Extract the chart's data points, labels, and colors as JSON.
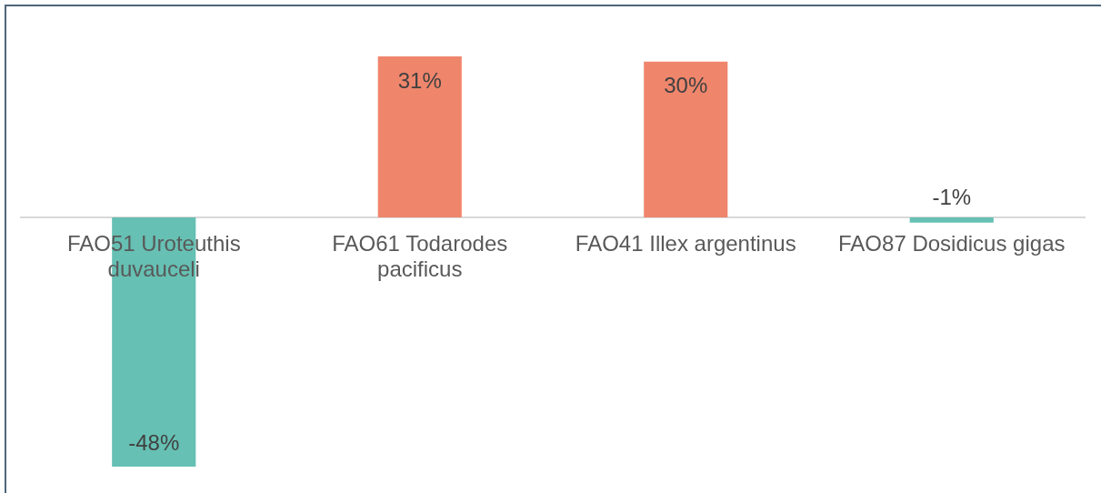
{
  "chart_data": {
    "type": "bar",
    "categories": [
      "FAO51 Uroteuthis duvauceli",
      "FAO61 Todarodes pacificus",
      "FAO41 Illex argentinus",
      "FAO87 Dosidicus gigas"
    ],
    "values": [
      -48,
      31,
      30,
      -1
    ],
    "value_labels": [
      "-48%",
      "31%",
      "30%",
      "-1%"
    ],
    "colors": [
      "#66c0b3",
      "#ef866c",
      "#ef866c",
      "#66c0b3"
    ],
    "tick_labels": "x"
  }
}
